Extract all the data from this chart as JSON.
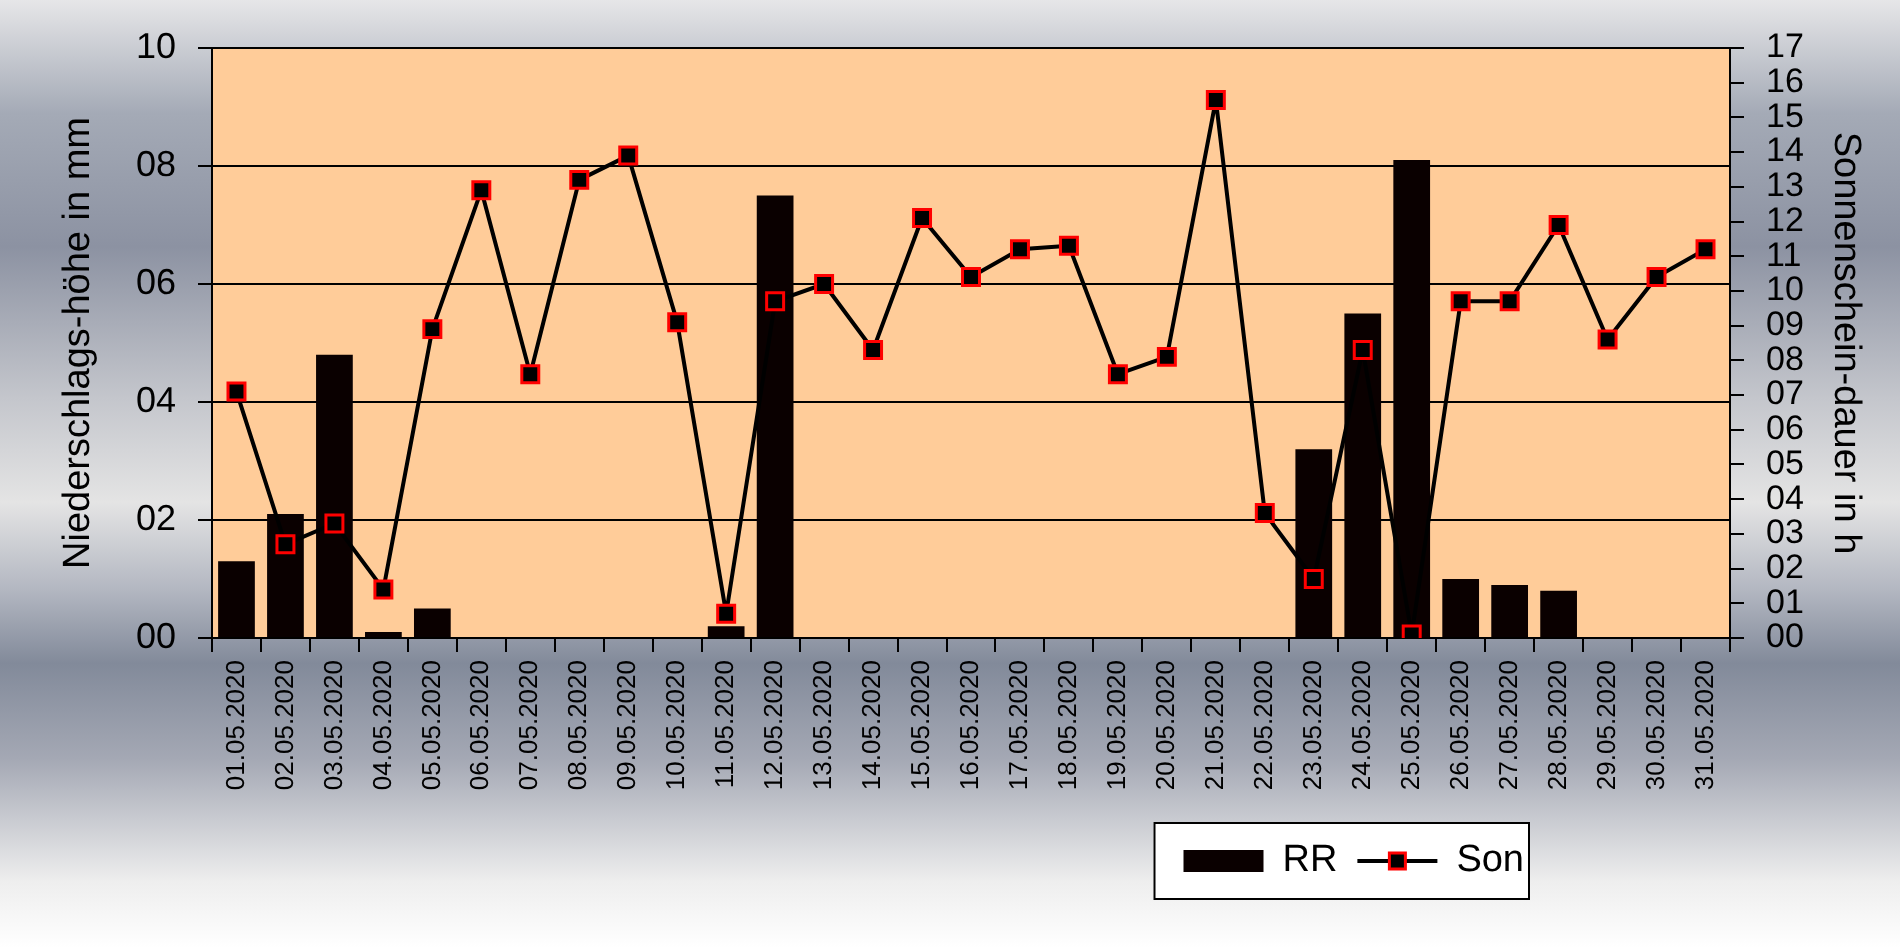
{
  "chart_data": {
    "type": "bar",
    "categories": [
      "01.05.2020",
      "02.05.2020",
      "03.05.2020",
      "04.05.2020",
      "05.05.2020",
      "06.05.2020",
      "07.05.2020",
      "08.05.2020",
      "09.05.2020",
      "10.05.2020",
      "11.05.2020",
      "12.05.2020",
      "13.05.2020",
      "14.05.2020",
      "15.05.2020",
      "16.05.2020",
      "17.05.2020",
      "18.05.2020",
      "19.05.2020",
      "20.05.2020",
      "21.05.2020",
      "22.05.2020",
      "23.05.2020",
      "24.05.2020",
      "25.05.2020",
      "26.05.2020",
      "27.05.2020",
      "28.05.2020",
      "29.05.2020",
      "30.05.2020",
      "31.05.2020"
    ],
    "ylabel": "Niederschlags-höhe in mm",
    "y2label": "Sonnenschein-dauer in h",
    "ylim": [
      0,
      10
    ],
    "yticks": [
      {
        "value": 0,
        "label": "00"
      },
      {
        "value": 2,
        "label": "02"
      },
      {
        "value": 4,
        "label": "04"
      },
      {
        "value": 6,
        "label": "06"
      },
      {
        "value": 8,
        "label": "08"
      },
      10
    ],
    "y2lim": [
      0,
      17
    ],
    "y2ticks": [
      {
        "value": 0,
        "label": "00"
      },
      {
        "value": 1,
        "label": "01"
      },
      {
        "value": 2,
        "label": "02"
      },
      {
        "value": 3,
        "label": "03"
      },
      {
        "value": 4,
        "label": "04"
      },
      {
        "value": 5,
        "label": "05"
      },
      {
        "value": 6,
        "label": "06"
      },
      {
        "value": 7,
        "label": "07"
      },
      {
        "value": 8,
        "label": "08"
      },
      {
        "value": 9,
        "label": "09"
      },
      10,
      11,
      12,
      13,
      14,
      15,
      16,
      17
    ],
    "series": [
      {
        "name": "RR",
        "color": "#0a0000",
        "values": [
          1.3,
          2.1,
          4.8,
          0.1,
          0.5,
          null,
          null,
          null,
          null,
          null,
          0.2,
          7.5,
          null,
          null,
          null,
          null,
          null,
          null,
          null,
          null,
          null,
          null,
          3.2,
          5.5,
          8.1,
          1.0,
          0.9,
          0.8,
          null,
          null,
          null
        ]
      },
      {
        "name": "Son",
        "type": "line",
        "axis": "y2",
        "color": "#000000",
        "values": [
          7.1,
          2.7,
          3.3,
          1.4,
          8.9,
          12.9,
          7.6,
          13.2,
          13.9,
          9.1,
          0.7,
          9.7,
          10.2,
          8.3,
          12.1,
          10.4,
          11.2,
          11.3,
          7.6,
          8.1,
          15.5,
          3.6,
          1.7,
          8.3,
          0.1,
          9.7,
          9.7,
          11.9,
          8.6,
          10.4,
          11.2
        ]
      }
    ],
    "grid": "y",
    "legend": "bottom right",
    "marker": "square",
    "line_style": "solid"
  }
}
